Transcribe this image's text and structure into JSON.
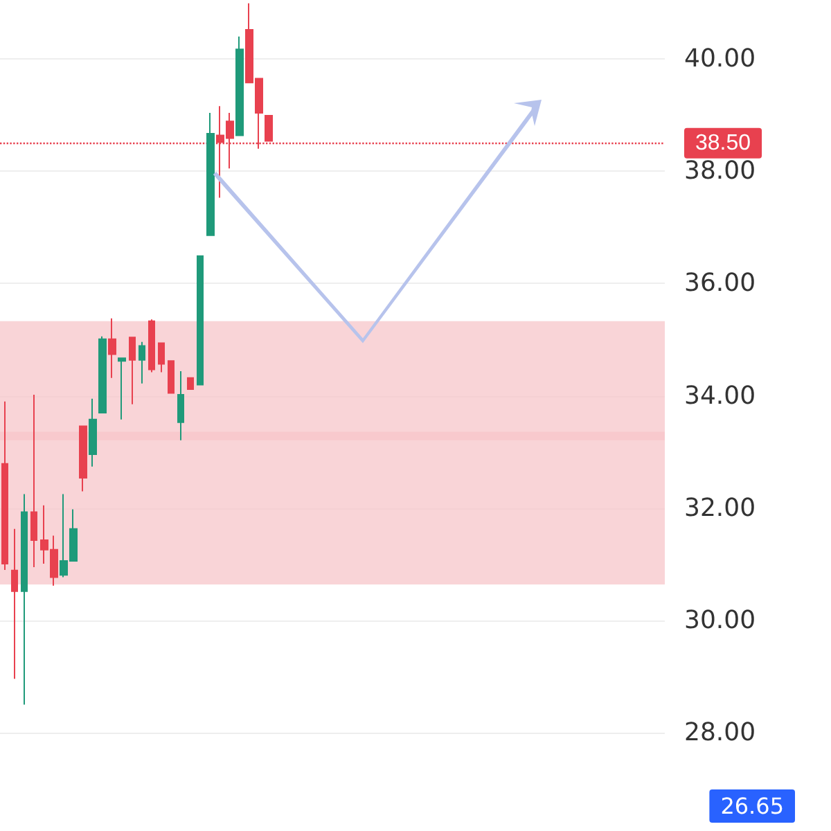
{
  "chart_data": {
    "type": "candlestick",
    "categories": [
      null,
      null,
      null,
      null,
      null,
      null,
      null,
      null,
      null,
      null,
      null,
      null,
      null,
      null,
      null,
      null,
      null,
      null,
      null,
      null,
      null,
      null,
      null,
      null,
      null,
      null,
      null,
      null,
      null,
      null,
      null,
      null,
      null,
      null,
      null,
      null,
      null,
      null,
      null,
      null,
      null,
      null,
      null,
      null,
      null,
      null,
      null,
      null,
      null,
      null,
      null,
      null,
      null,
      null,
      null,
      null,
      null,
      null,
      null,
      null,
      null,
      null,
      null,
      null,
      null,
      null,
      null,
      null
    ],
    "ohlc": [
      [
        32.79,
        33.9,
        30.9,
        31.01
      ],
      [
        30.89,
        31.63,
        28.96,
        30.52
      ],
      [
        30.52,
        32.25,
        28.5,
        31.93
      ],
      [
        31.93,
        34.02,
        30.95,
        31.43
      ],
      [
        31.43,
        32.05,
        31.01,
        31.26
      ],
      [
        31.26,
        31.51,
        30.62,
        30.77
      ],
      [
        30.81,
        32.25,
        30.77,
        31.06
      ],
      [
        31.06,
        31.98,
        31.06,
        31.63
      ],
      [
        33.46,
        33.46,
        32.3,
        32.54
      ],
      [
        32.96,
        33.95,
        32.74,
        33.58
      ],
      [
        33.7,
        35.06,
        33.7,
        35.01
      ],
      [
        35.01,
        35.38,
        34.32,
        34.74
      ],
      [
        34.62,
        34.67,
        33.58,
        34.67
      ],
      [
        35.04,
        35.04,
        33.85,
        34.64
      ],
      [
        34.64,
        34.96,
        34.22,
        34.89
      ],
      [
        35.33,
        35.36,
        34.42,
        34.47
      ],
      [
        34.94,
        34.94,
        34.42,
        34.57
      ],
      [
        34.62,
        34.62,
        34.05,
        34.05
      ],
      [
        33.53,
        34.44,
        33.21,
        34.02
      ],
      [
        34.32,
        34.32,
        34.12,
        34.12
      ],
      [
        34.2,
        36.49,
        34.2,
        36.49
      ],
      [
        36.86,
        39.04,
        36.86,
        38.67
      ],
      [
        38.64,
        39.16,
        37.53,
        38.52
      ],
      [
        38.89,
        39.04,
        38.05,
        38.59
      ],
      [
        38.64,
        40.4,
        38.64,
        40.17
      ],
      [
        40.52,
        40.99,
        39.58,
        39.58
      ],
      [
        39.65,
        39.65,
        38.4,
        39.04
      ],
      [
        38.99,
        38.99,
        38.54,
        38.54
      ],
      null,
      null,
      null,
      null,
      null,
      null,
      null,
      null,
      null,
      null,
      null,
      null,
      null,
      null,
      null,
      null,
      null,
      null,
      null,
      null,
      null,
      null,
      null,
      null,
      null,
      null,
      null,
      null,
      null,
      null,
      null,
      null,
      null,
      null,
      null,
      null,
      null,
      null,
      null,
      null
    ],
    "ylim": [
      26.25,
      41.05
    ],
    "yticks": [
      {
        "value": 28,
        "label": "28.00"
      },
      {
        "value": 30,
        "label": "30.00"
      },
      {
        "value": 32,
        "label": "32.00"
      },
      {
        "value": 34,
        "label": "34.00"
      },
      {
        "value": 36,
        "label": "36.00"
      },
      {
        "value": 38,
        "label": "38.00"
      },
      {
        "value": 40,
        "label": "40.00"
      }
    ],
    "tick_labels": "y",
    "grid": "y",
    "ref_lines": [
      {
        "axis": "y",
        "value": 38.5,
        "label": "38.50",
        "color": "#e8414f",
        "line_style": "dotted"
      }
    ],
    "bands": [
      {
        "axis": "y",
        "from": 33.21,
        "to": 35.33,
        "label": null,
        "color": "#f7c5c9"
      },
      {
        "axis": "y",
        "from": 30.64,
        "to": 33.36,
        "label": null,
        "color": "#f7c5c9"
      }
    ],
    "annotations": [
      "26.65"
    ]
  }
}
